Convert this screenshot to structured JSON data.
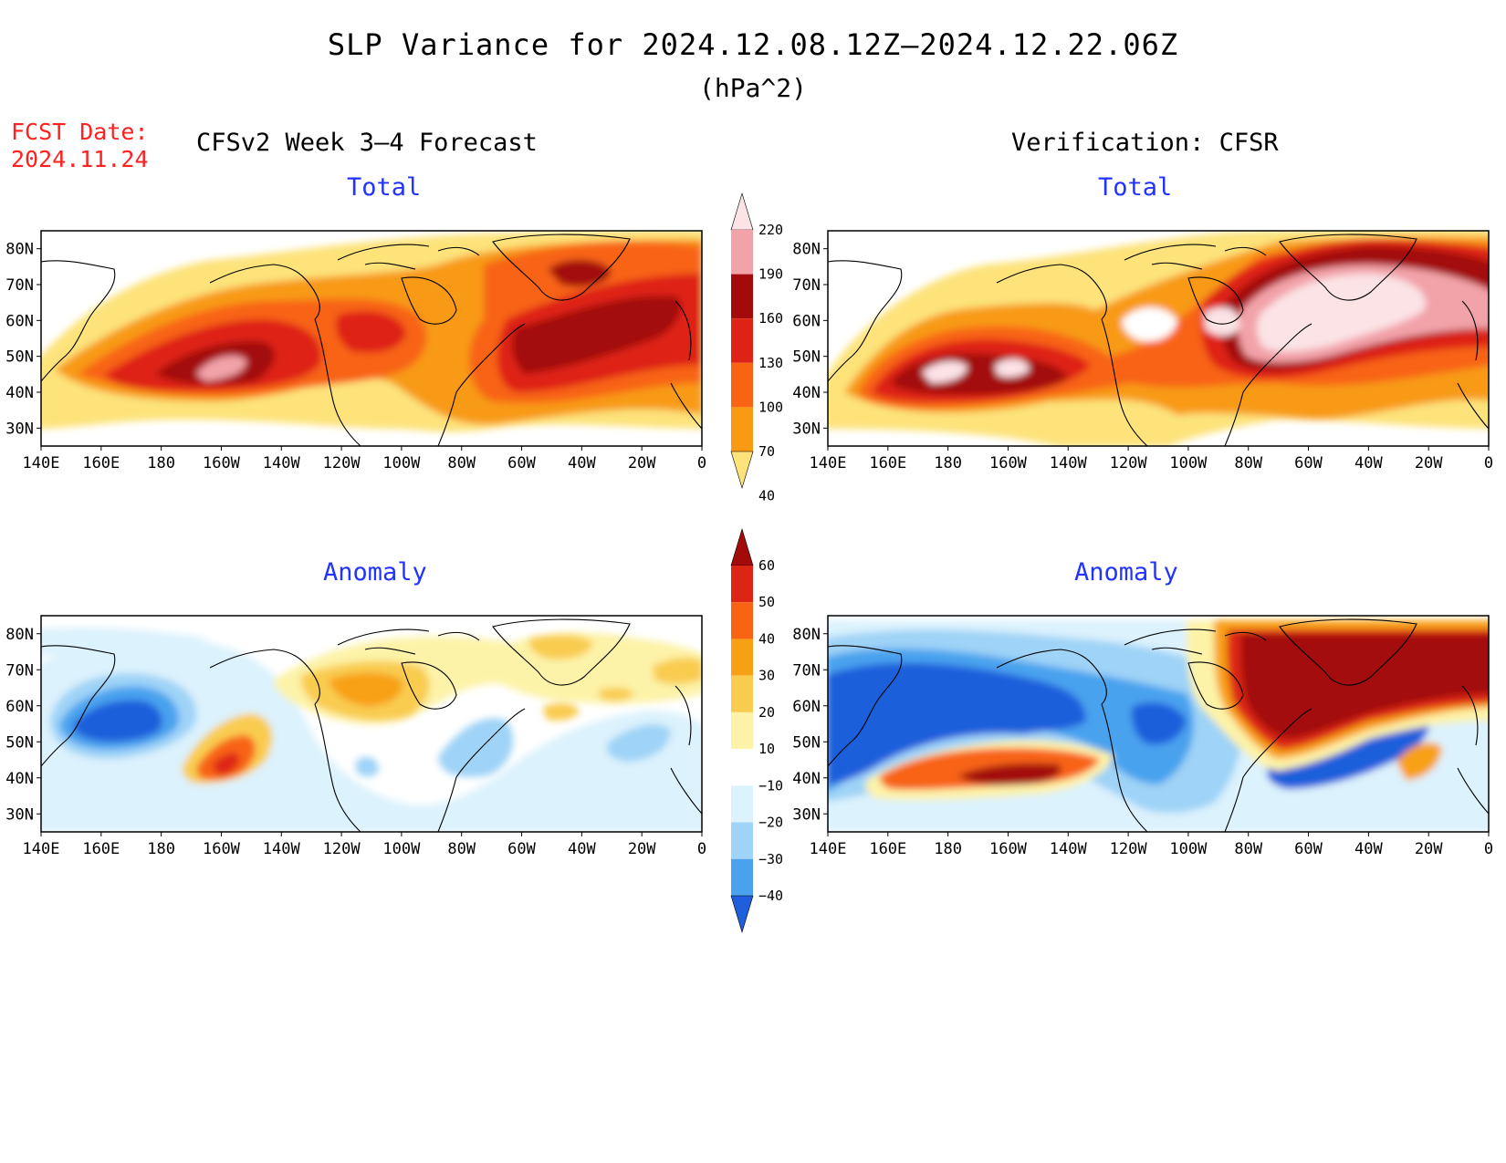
{
  "title": "SLP Variance for 2024.12.08.12Z–2024.12.22.06Z",
  "units": "(hPa^2)",
  "fcst_date_label": "FCST Date:",
  "fcst_date_value": "2024.11.24",
  "left_header": "CFSv2 Week 3–4 Forecast",
  "right_header": "Verification: CFSR",
  "panels": [
    {
      "id": "fcst-total",
      "subtitle": "Total"
    },
    {
      "id": "verif-total",
      "subtitle": "Total"
    },
    {
      "id": "fcst-anomaly",
      "subtitle": "Anomaly"
    },
    {
      "id": "verif-anomaly",
      "subtitle": "Anomaly"
    }
  ],
  "lon_labels": [
    "140E",
    "160E",
    "180",
    "160W",
    "140W",
    "120W",
    "100W",
    "80W",
    "60W",
    "40W",
    "20W",
    "0"
  ],
  "lat_labels": [
    "80N",
    "70N",
    "60N",
    "50N",
    "40N",
    "30N"
  ],
  "lat_values": [
    80,
    70,
    60,
    50,
    40,
    30
  ],
  "total_colorbar": {
    "labels": [
      "220",
      "190",
      "160",
      "130",
      "100",
      "70",
      "40"
    ],
    "colors": [
      "#fbe3e6",
      "#f2a3a9",
      "#a30b0b",
      "#de2316",
      "#f86414",
      "#f89a14",
      "#fde37a"
    ]
  },
  "anomaly_colorbar": {
    "labels": [
      "60",
      "50",
      "40",
      "30",
      "20",
      "10",
      "−10",
      "−20",
      "−30",
      "−40"
    ],
    "colors": [
      "#a30b0b",
      "#dd2516",
      "#f86414",
      "#f8a015",
      "#f9cc50",
      "#fdf3a8",
      "#ffffff",
      "#dcf2fd",
      "#9fd3f7",
      "#4aa2ee",
      "#1f5fdb"
    ]
  }
}
